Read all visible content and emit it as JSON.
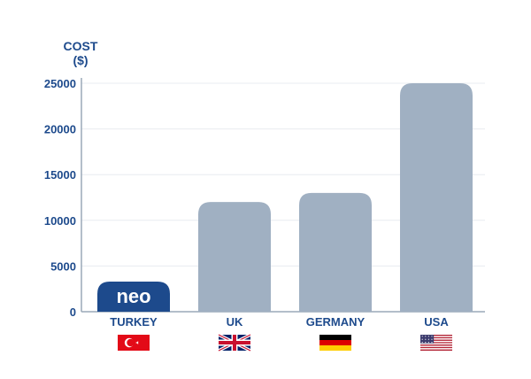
{
  "chart_data": {
    "type": "bar",
    "ylabel_lines": [
      "COST",
      "($)"
    ],
    "categories": [
      "TURKEY",
      "UK",
      "GERMANY",
      "USA"
    ],
    "values": [
      3300,
      12000,
      13000,
      25000
    ],
    "ylim": [
      0,
      25000
    ],
    "yticks": [
      "0",
      "5000",
      "10000",
      "15000",
      "20000",
      "25000"
    ],
    "grid": true,
    "highlight": {
      "category": "TURKEY",
      "logo_text": "neo"
    },
    "colors": {
      "bar": "#a0b0c2",
      "highlight_bar": "#1d4a8c",
      "text": "#1d4a8c",
      "grid": "#e8ecf0",
      "axis": "#9aa8b8"
    },
    "flags": [
      "turkey-flag-icon",
      "uk-flag-icon",
      "germany-flag-icon",
      "usa-flag-icon"
    ]
  }
}
